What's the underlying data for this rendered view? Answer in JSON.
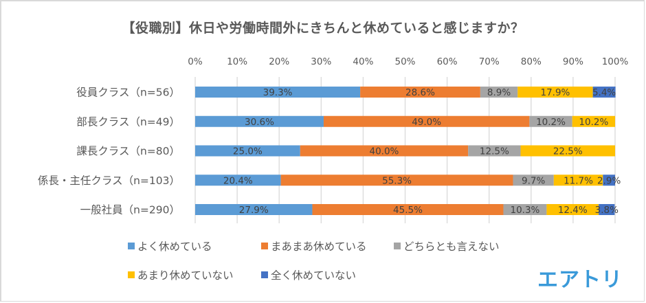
{
  "chart_data": {
    "type": "bar",
    "orientation": "horizontal",
    "stacked": true,
    "percent_stacked": true,
    "title": "【役職別】休日や労働時間外にきちんと休めていると感じますか？",
    "xlabel": "",
    "ylabel": "",
    "xlim": [
      0,
      100
    ],
    "x_ticks": [
      "0%",
      "10%",
      "20%",
      "30%",
      "40%",
      "50%",
      "60%",
      "70%",
      "80%",
      "90%",
      "100%"
    ],
    "grid": true,
    "legend_position": "bottom",
    "categories": [
      "役員クラス（n=56）",
      "部長クラス（n=49）",
      "課長クラス（n=80）",
      "係長・主任クラス（n=103）",
      "一般社員（n=290）"
    ],
    "series": [
      {
        "name": "よく休めている",
        "color": "#5b9bd5",
        "values": [
          39.3,
          30.6,
          25.0,
          20.4,
          27.9
        ]
      },
      {
        "name": "まあまあ休めている",
        "color": "#ed7d31",
        "values": [
          28.6,
          49.0,
          40.0,
          55.3,
          45.5
        ]
      },
      {
        "name": "どちらとも言えない",
        "color": "#a5a5a5",
        "values": [
          8.9,
          10.2,
          12.5,
          9.7,
          10.3
        ]
      },
      {
        "name": "あまり休めていない",
        "color": "#ffc000",
        "values": [
          17.9,
          10.2,
          22.5,
          11.7,
          12.4
        ]
      },
      {
        "name": "全く休めていない",
        "color": "#4472c4",
        "values": [
          5.4,
          0,
          0,
          2.9,
          3.8
        ]
      }
    ],
    "data_labels": [
      [
        "39.3%",
        "28.6%",
        "8.9%",
        "17.9%",
        "5.4%"
      ],
      [
        "30.6%",
        "49.0%",
        "10.2%",
        "10.2%",
        ""
      ],
      [
        "25.0%",
        "40.0%",
        "12.5%",
        "22.5%",
        ""
      ],
      [
        "20.4%",
        "55.3%",
        "9.7%",
        "11.7%",
        "2.9%"
      ],
      [
        "27.9%",
        "45.5%",
        "10.3%",
        "12.4%",
        "3.8%"
      ]
    ]
  },
  "branding": {
    "logo_text": "エアトリ",
    "logo_color": "#3a9ad9"
  }
}
